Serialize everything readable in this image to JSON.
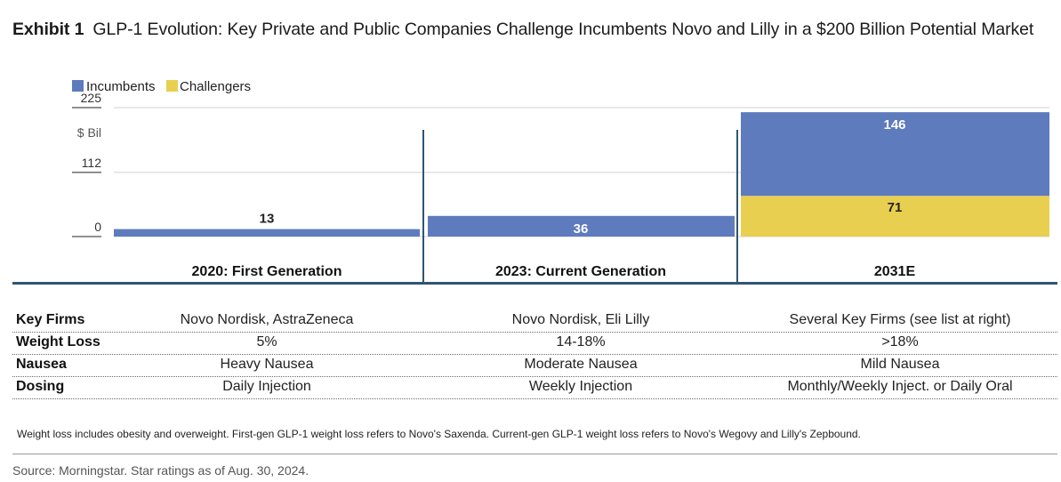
{
  "title": {
    "prefix": "Exhibit 1",
    "text": "GLP-1 Evolution: Key Private and Public Companies Challenge Incumbents Novo and Lilly in a $200 Billion Potential Market"
  },
  "colors": {
    "incumbents": "#5e7bbd",
    "challengers": "#e8cf4f",
    "rule": "#2f5671"
  },
  "chart_data": {
    "type": "bar",
    "stacked": true,
    "categories": [
      "2020: First Generation",
      "2023: Current Generation",
      "2031E"
    ],
    "series": [
      {
        "name": "Incumbents",
        "values": [
          13,
          36,
          146
        ]
      },
      {
        "name": "Challengers",
        "values": [
          0,
          0,
          71
        ]
      }
    ],
    "ylim": [
      0,
      225
    ],
    "yticks": [
      "225",
      "112",
      "0"
    ],
    "yunit": "$ Bil",
    "legend_position": "top-left",
    "grid": true
  },
  "table": {
    "rows": [
      {
        "label": "Key Firms",
        "cells": [
          "Novo Nordisk, AstraZeneca",
          "Novo Nordisk, Eli Lilly",
          "Several Key Firms (see list at right)"
        ]
      },
      {
        "label": "Weight Loss",
        "cells": [
          "5%",
          "14-18%",
          ">18%"
        ]
      },
      {
        "label": "Nausea",
        "cells": [
          "Heavy Nausea",
          "Moderate Nausea",
          "Mild Nausea"
        ]
      },
      {
        "label": "Dosing",
        "cells": [
          "Daily Injection",
          "Weekly Injection",
          "Monthly/Weekly Inject. or Daily Oral"
        ]
      }
    ]
  },
  "footnote": "Weight loss includes obesity and overweight. First-gen GLP-1 weight loss refers to Novo's Saxenda. Current-gen GLP-1 weight loss refers to Novo's Wegovy and Lilly's Zepbound.",
  "source": "Source: Morningstar. Star ratings as of Aug. 30, 2024."
}
